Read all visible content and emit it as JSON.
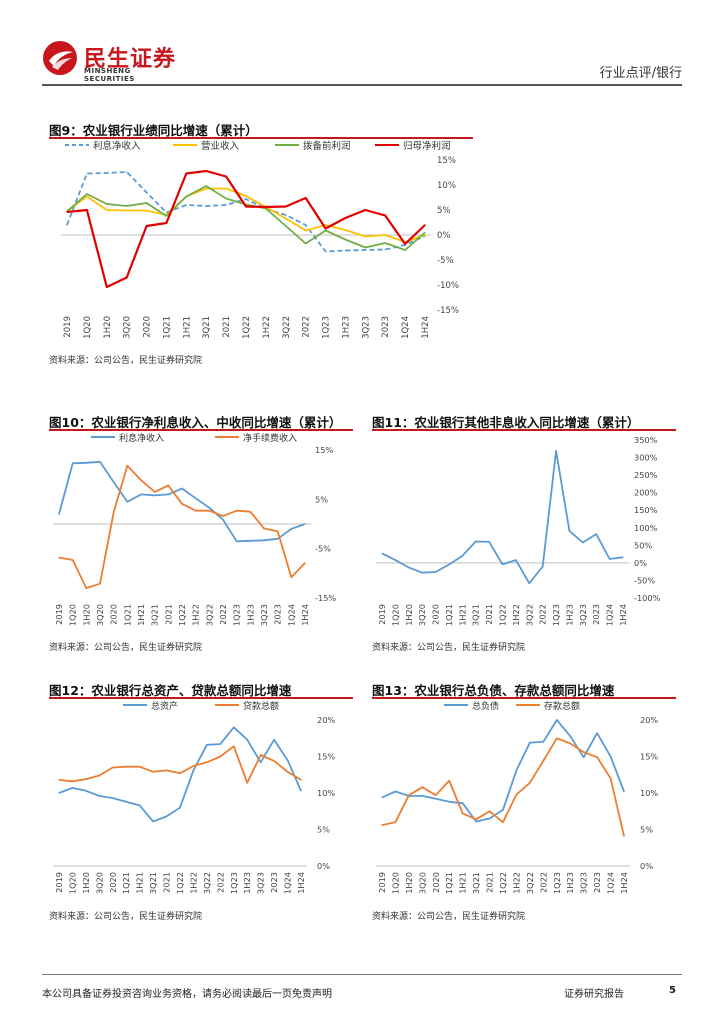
{
  "header": {
    "logo_cn": "民生证券",
    "logo_en": "MINSHENG SECURITIES",
    "category": "行业点评/银行"
  },
  "footer": {
    "disclaimer": "本公司具备证券投资咨询业务资格，请务必阅读最后一页免责声明",
    "report_type": "证券研究报告",
    "page_number": "5"
  },
  "colors": {
    "blue": "#5b9bd5",
    "orange": "#ed7d31",
    "yellow": "#ffc000",
    "green": "#70ad47",
    "red": "#e00000",
    "brand_red": "#c9161d"
  },
  "charts": [
    {
      "id": "fig9",
      "title": "图9：农业银行业绩同比增速（累计）",
      "source": "资料来源：公司公告，民生证券研究院"
    },
    {
      "id": "fig10",
      "title": "图10：农业银行净利息收入、中收同比增速（累计）",
      "source": "资料来源：公司公告，民生证券研究院"
    },
    {
      "id": "fig11",
      "title": "图11：农业银行其他非息收入同比增速（累计）",
      "source": "资料来源：公司公告，民生证券研究院"
    },
    {
      "id": "fig12",
      "title": "图12：农业银行总资产、贷款总额同比增速",
      "source": "资料来源：公司公告，民生证券研究院"
    },
    {
      "id": "fig13",
      "title": "图13：农业银行总负债、存款总额同比增速",
      "source": "资料来源：公司公告，民生证券研究院"
    }
  ],
  "chart_data": [
    {
      "type": "line",
      "title": "图9：农业银行业绩同比增速（累计）",
      "categories": [
        "2019",
        "1Q20",
        "1H20",
        "3Q20",
        "2020",
        "1Q21",
        "1H21",
        "3Q21",
        "2021",
        "1Q22",
        "1H22",
        "3Q22",
        "2022",
        "1Q23",
        "1H23",
        "3Q23",
        "2023",
        "1Q24",
        "1H24"
      ],
      "ylim": [
        -15,
        15
      ],
      "yticks": [
        15,
        10,
        5,
        0,
        -5,
        -10,
        -15
      ],
      "yaxis_side": "right",
      "series": [
        {
          "name": "利息净收入",
          "color": "#5b9bd5",
          "dash": true,
          "values": [
            2.0,
            12.3,
            12.4,
            12.6,
            8.5,
            4.5,
            6.0,
            5.8,
            6.0,
            7.2,
            5.2,
            4.0,
            2.0,
            -3.3,
            -3.1,
            -3.0,
            -2.9,
            -2.0,
            -0.2
          ]
        },
        {
          "name": "营业收入",
          "color": "#ffc000",
          "dash": false,
          "values": [
            4.8,
            7.7,
            5.0,
            4.9,
            4.9,
            4.0,
            7.7,
            9.3,
            9.3,
            7.8,
            5.6,
            3.3,
            0.9,
            2.0,
            1.0,
            -0.3,
            0.0,
            -1.4,
            0.0
          ]
        },
        {
          "name": "拨备前利润",
          "color": "#70ad47",
          "dash": false,
          "values": [
            4.7,
            8.2,
            6.2,
            5.8,
            6.4,
            3.8,
            7.7,
            9.8,
            7.3,
            6.1,
            5.3,
            1.8,
            -1.7,
            0.9,
            -0.9,
            -2.5,
            -1.6,
            -3.0,
            0.5
          ]
        },
        {
          "name": "归母净利润",
          "color": "#e00000",
          "dash": false,
          "values": [
            4.6,
            5.0,
            -10.4,
            -8.5,
            1.8,
            2.4,
            12.3,
            12.8,
            11.7,
            5.7,
            5.6,
            5.7,
            7.4,
            1.3,
            3.4,
            5.0,
            3.9,
            -1.8,
            2.0
          ]
        }
      ]
    },
    {
      "type": "line",
      "title": "图10：农业银行净利息收入、中收同比增速（累计）",
      "categories": [
        "2019",
        "1Q20",
        "1H20",
        "3Q20",
        "2020",
        "1Q21",
        "1H21",
        "3Q21",
        "2021",
        "1Q22",
        "1H22",
        "3Q22",
        "2022",
        "1Q23",
        "1H23",
        "3Q23",
        "2023",
        "1Q24",
        "1H24"
      ],
      "ylim": [
        -15,
        15
      ],
      "yticks": [
        15,
        5,
        -5,
        -15
      ],
      "yaxis_side": "right",
      "series": [
        {
          "name": "利息净收入",
          "color": "#5b9bd5",
          "values": [
            2.0,
            12.3,
            12.4,
            12.6,
            8.5,
            4.5,
            6.0,
            5.8,
            6.0,
            7.2,
            5.2,
            3.3,
            0.9,
            -3.5,
            -3.4,
            -3.3,
            -3.0,
            -1.0,
            0.0
          ]
        },
        {
          "name": "净手续费收入",
          "color": "#ed7d31",
          "values": [
            -6.8,
            -7.3,
            -13.0,
            -12.1,
            2.4,
            11.8,
            8.9,
            6.5,
            7.8,
            4.1,
            2.7,
            2.7,
            1.6,
            2.7,
            2.5,
            -0.9,
            -1.5,
            -10.8,
            -7.9
          ]
        }
      ]
    },
    {
      "type": "line",
      "title": "图11：农业银行其他非息收入同比增速（累计）",
      "categories": [
        "2019",
        "1Q20",
        "1H20",
        "3Q20",
        "2020",
        "1Q21",
        "1H21",
        "3Q21",
        "2021",
        "1Q22",
        "1H22",
        "3Q22",
        "2022",
        "1Q23",
        "1H23",
        "3Q23",
        "2023",
        "1Q24",
        "1H24"
      ],
      "ylim": [
        -100,
        350
      ],
      "yticks": [
        350,
        300,
        250,
        200,
        150,
        100,
        50,
        0,
        -50,
        -100
      ],
      "yaxis_side": "right",
      "unit": "%",
      "series": [
        {
          "name": "其他非息收入",
          "color": "#5b9bd5",
          "values": [
            27,
            8,
            -13,
            -28,
            -26,
            -5,
            20,
            61,
            60,
            -4,
            8,
            -58,
            -10,
            319,
            91,
            58,
            82,
            11,
            16
          ]
        }
      ]
    },
    {
      "type": "line",
      "title": "图12：农业银行总资产、贷款总额同比增速",
      "categories": [
        "2019",
        "1Q20",
        "1H20",
        "3Q20",
        "2020",
        "1Q21",
        "1H21",
        "3Q21",
        "2021",
        "1Q22",
        "1H22",
        "3Q22",
        "2022",
        "1Q23",
        "1H23",
        "3Q23",
        "2023",
        "1Q24",
        "1H24"
      ],
      "ylim": [
        0,
        20
      ],
      "yticks": [
        20,
        15,
        10,
        5,
        0
      ],
      "yaxis_side": "right",
      "unit": "%",
      "series": [
        {
          "name": "总资产",
          "color": "#5b9bd5",
          "values": [
            10.0,
            10.7,
            10.3,
            9.6,
            9.3,
            8.8,
            8.3,
            6.1,
            6.8,
            8.0,
            13.1,
            16.6,
            16.7,
            19.0,
            17.3,
            14.2,
            17.3,
            14.5,
            10.3
          ]
        },
        {
          "name": "贷款总额",
          "color": "#ed7d31",
          "values": [
            11.8,
            11.6,
            11.9,
            12.4,
            13.5,
            13.6,
            13.6,
            12.9,
            13.1,
            12.7,
            13.7,
            14.2,
            15.0,
            16.4,
            11.4,
            15.2,
            14.4,
            12.9,
            11.8
          ]
        }
      ]
    },
    {
      "type": "line",
      "title": "图13：农业银行总负债、存款总额同比增速",
      "categories": [
        "2019",
        "1Q20",
        "1H20",
        "3Q20",
        "2020",
        "1Q21",
        "1H21",
        "3Q21",
        "2021",
        "1Q22",
        "1H22",
        "3Q22",
        "2022",
        "1Q23",
        "1H23",
        "3Q23",
        "2023",
        "1Q24",
        "1H24"
      ],
      "ylim": [
        0,
        20
      ],
      "yticks": [
        20,
        15,
        10,
        5,
        0
      ],
      "yaxis_side": "right",
      "unit": "%",
      "series": [
        {
          "name": "总负债",
          "color": "#5b9bd5",
          "values": [
            9.4,
            10.2,
            9.6,
            9.6,
            9.2,
            8.8,
            8.6,
            6.1,
            6.5,
            7.7,
            13.1,
            16.9,
            17.0,
            20.0,
            17.8,
            14.9,
            18.2,
            15.0,
            10.2
          ]
        },
        {
          "name": "存款总额",
          "color": "#ed7d31",
          "values": [
            5.6,
            6.0,
            9.7,
            10.8,
            9.7,
            11.7,
            7.2,
            6.4,
            7.5,
            6.0,
            9.8,
            11.4,
            14.4,
            17.5,
            16.8,
            15.6,
            14.9,
            12.0,
            4.1
          ]
        }
      ]
    }
  ]
}
